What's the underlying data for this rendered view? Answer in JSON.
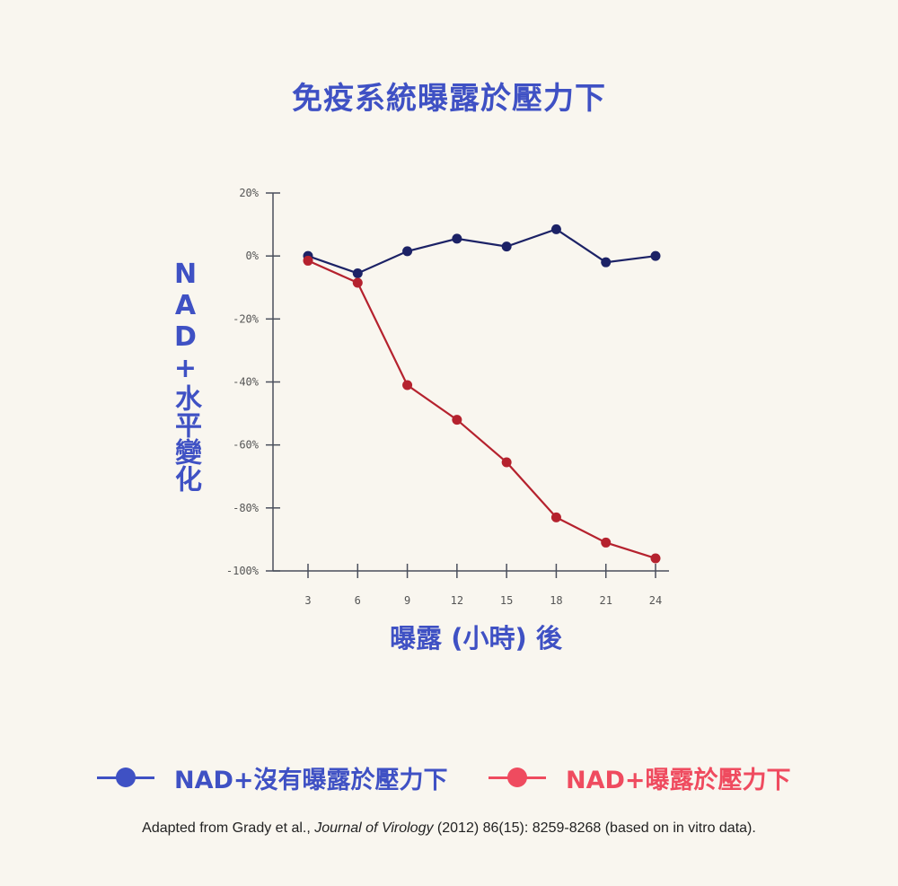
{
  "chart_data": {
    "type": "line",
    "title": "免疫系統曝露於壓力下",
    "xlabel": "曝露 (小時) 後",
    "ylabel": "NAD+水平變化",
    "x": [
      3,
      6,
      9,
      12,
      15,
      18,
      21,
      24
    ],
    "xticks": [
      "3",
      "6",
      "9",
      "12",
      "15",
      "18",
      "21",
      "24"
    ],
    "ylim": [
      -100,
      20
    ],
    "yticks": [
      20,
      0,
      -20,
      -40,
      -60,
      -80,
      -100
    ],
    "ytick_labels": [
      "20%",
      "0%",
      "-20%",
      "-40%",
      "-60%",
      "-80%",
      "-100%"
    ],
    "grid": false,
    "legend_position": "bottom",
    "series": [
      {
        "name": "NAD+沒有曝露於壓力下",
        "color": "#1c2266",
        "legend_color": "#3f51c4",
        "values": [
          0,
          -5.5,
          1.5,
          5.5,
          3,
          8.5,
          -2,
          0
        ]
      },
      {
        "name": "NAD+曝露於壓力下",
        "color": "#b5222e",
        "legend_color": "#ef4b5f",
        "values": [
          -1.5,
          -8.5,
          -41,
          -52,
          -65.5,
          -83,
          -91,
          -96
        ]
      }
    ]
  },
  "footnote": {
    "prefix": "Adapted from Grady et al., ",
    "journal": "Journal of Virology",
    "suffix": " (2012) 86(15): 8259-8268 (based on in vitro data)."
  }
}
